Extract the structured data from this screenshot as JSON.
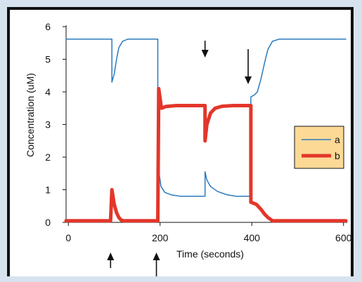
{
  "chart_data": {
    "type": "line",
    "title": "",
    "xlabel": "Time (seconds)",
    "ylabel": "Concentration (uM)",
    "xlim": [
      -5,
      605
    ],
    "ylim": [
      0,
      6
    ],
    "x_ticks": [
      "0",
      "200",
      "400",
      "600"
    ],
    "y_ticks": [
      "0",
      "1",
      "2",
      "3",
      "4",
      "5",
      "6"
    ],
    "legend_position": "right",
    "grid": false,
    "series": [
      {
        "name": "a",
        "color": "#2b7bbf",
        "points": [
          [
            -5,
            5.62
          ],
          [
            95,
            5.62
          ],
          [
            95,
            4.3
          ],
          [
            100,
            4.55
          ],
          [
            105,
            5.0
          ],
          [
            110,
            5.35
          ],
          [
            118,
            5.55
          ],
          [
            130,
            5.62
          ],
          [
            195,
            5.62
          ],
          [
            195,
            4.1
          ],
          [
            198,
            1.5
          ],
          [
            202,
            1.1
          ],
          [
            210,
            0.92
          ],
          [
            225,
            0.84
          ],
          [
            245,
            0.8
          ],
          [
            298,
            0.8
          ],
          [
            298,
            1.55
          ],
          [
            302,
            1.3
          ],
          [
            310,
            1.1
          ],
          [
            325,
            0.95
          ],
          [
            345,
            0.85
          ],
          [
            365,
            0.8
          ],
          [
            398,
            0.8
          ],
          [
            398,
            3.85
          ],
          [
            405,
            3.9
          ],
          [
            412,
            4.0
          ],
          [
            420,
            4.4
          ],
          [
            428,
            4.9
          ],
          [
            435,
            5.3
          ],
          [
            445,
            5.55
          ],
          [
            460,
            5.62
          ],
          [
            605,
            5.62
          ]
        ]
      },
      {
        "name": "b",
        "color": "#e3362a",
        "points": [
          [
            -5,
            0.05
          ],
          [
            92,
            0.05
          ],
          [
            95,
            1.0
          ],
          [
            100,
            0.55
          ],
          [
            105,
            0.3
          ],
          [
            110,
            0.15
          ],
          [
            115,
            0.07
          ],
          [
            120,
            0.05
          ],
          [
            195,
            0.05
          ],
          [
            197,
            4.1
          ],
          [
            203,
            3.5
          ],
          [
            212,
            3.55
          ],
          [
            235,
            3.58
          ],
          [
            298,
            3.58
          ],
          [
            298,
            2.5
          ],
          [
            302,
            3.0
          ],
          [
            310,
            3.35
          ],
          [
            320,
            3.5
          ],
          [
            335,
            3.56
          ],
          [
            360,
            3.58
          ],
          [
            398,
            3.58
          ],
          [
            398,
            0.62
          ],
          [
            410,
            0.55
          ],
          [
            420,
            0.4
          ],
          [
            428,
            0.25
          ],
          [
            435,
            0.15
          ],
          [
            445,
            0.05
          ],
          [
            605,
            0.05
          ]
        ]
      }
    ],
    "annotations": [
      {
        "type": "arrow-up",
        "x": 92,
        "length": "short"
      },
      {
        "type": "arrow-up",
        "x": 192,
        "length": "long"
      },
      {
        "type": "arrow-down",
        "x": 298,
        "length": "short"
      },
      {
        "type": "arrow-down",
        "x": 392,
        "length": "long"
      }
    ],
    "legend_background": "#fcd995"
  }
}
